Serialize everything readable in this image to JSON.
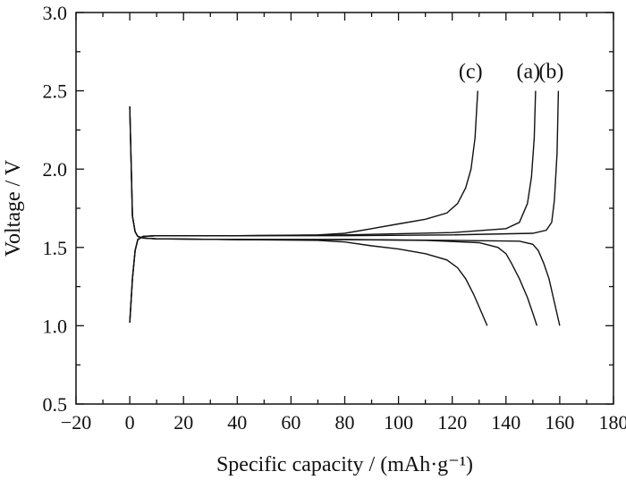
{
  "chart_data": {
    "type": "line",
    "title": "",
    "xlabel": "Specific capacity / (mAh·g⁻¹)",
    "ylabel": "Voltage / V",
    "xlim": [
      -20,
      180
    ],
    "ylim": [
      0.5,
      3.0
    ],
    "x_ticks": [
      "−20",
      "0",
      "20",
      "40",
      "60",
      "80",
      "100",
      "120",
      "140",
      "160",
      "180"
    ],
    "x_tick_values": [
      -20,
      0,
      20,
      40,
      60,
      80,
      100,
      120,
      140,
      160,
      180
    ],
    "y_ticks": [
      "0.5",
      "1.0",
      "1.5",
      "2.0",
      "2.5",
      "3.0"
    ],
    "y_tick_values": [
      0.5,
      1.0,
      1.5,
      2.0,
      2.5,
      3.0
    ],
    "grid": false,
    "curves": [
      {
        "name": "(a)",
        "charge": {
          "x": [
            0,
            1,
            2,
            3,
            5,
            10,
            40,
            80,
            120,
            140,
            145,
            148,
            149.5,
            150.5,
            151
          ],
          "y": [
            1.02,
            1.3,
            1.48,
            1.55,
            1.57,
            1.575,
            1.575,
            1.58,
            1.595,
            1.62,
            1.66,
            1.78,
            1.95,
            2.2,
            2.5
          ]
        },
        "discharge": {
          "x": [
            0,
            1,
            2,
            3,
            5,
            10,
            40,
            80,
            110,
            130,
            137,
            140,
            142,
            145,
            148,
            150,
            151.5
          ],
          "y": [
            2.4,
            1.7,
            1.6,
            1.57,
            1.56,
            1.555,
            1.55,
            1.55,
            1.545,
            1.53,
            1.5,
            1.46,
            1.4,
            1.3,
            1.18,
            1.08,
            1.0
          ]
        }
      },
      {
        "name": "(b)",
        "charge": {
          "x": [
            0,
            1,
            2,
            3,
            5,
            10,
            40,
            80,
            120,
            150,
            155,
            157,
            158,
            159,
            159.5
          ],
          "y": [
            1.02,
            1.3,
            1.48,
            1.55,
            1.57,
            1.575,
            1.575,
            1.575,
            1.58,
            1.59,
            1.61,
            1.66,
            1.8,
            2.1,
            2.5
          ]
        },
        "discharge": {
          "x": [
            0,
            1,
            2,
            3,
            5,
            10,
            40,
            80,
            120,
            145,
            150,
            152,
            154,
            156,
            158,
            160
          ],
          "y": [
            2.4,
            1.7,
            1.6,
            1.57,
            1.56,
            1.555,
            1.55,
            1.55,
            1.545,
            1.54,
            1.52,
            1.48,
            1.4,
            1.3,
            1.15,
            1.0
          ]
        }
      },
      {
        "name": "(c)",
        "charge": {
          "x": [
            0,
            1,
            2,
            3,
            5,
            10,
            40,
            70,
            80,
            90,
            100,
            110,
            118,
            122,
            125,
            127,
            128.5,
            129.5
          ],
          "y": [
            1.02,
            1.3,
            1.48,
            1.55,
            1.57,
            1.575,
            1.575,
            1.58,
            1.59,
            1.62,
            1.65,
            1.68,
            1.72,
            1.78,
            1.88,
            2.0,
            2.2,
            2.5
          ]
        },
        "discharge": {
          "x": [
            0,
            1,
            2,
            3,
            5,
            10,
            40,
            70,
            80,
            90,
            100,
            110,
            118,
            122,
            125,
            128,
            131,
            133
          ],
          "y": [
            2.4,
            1.7,
            1.6,
            1.57,
            1.56,
            1.555,
            1.55,
            1.545,
            1.535,
            1.51,
            1.49,
            1.46,
            1.42,
            1.37,
            1.3,
            1.2,
            1.08,
            1.0
          ]
        }
      }
    ]
  }
}
